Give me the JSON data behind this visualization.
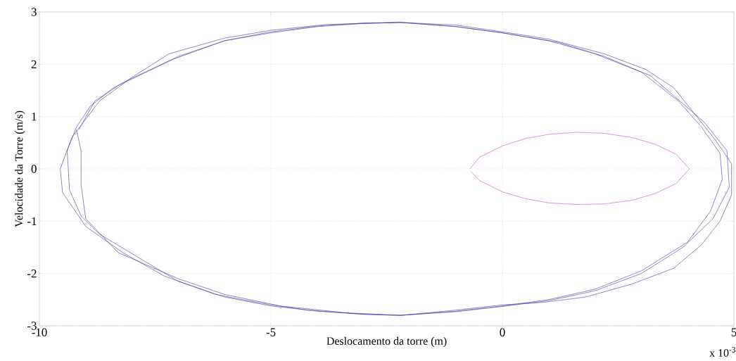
{
  "chart_data": {
    "type": "line",
    "xlabel": "Deslocamento da torre (m)",
    "ylabel": "Velocidade da Torre (m/s)",
    "annotations": [
      "x 10$^{-3}$"
    ],
    "xlim": [
      -10,
      5
    ],
    "ylim": [
      -3,
      3
    ],
    "xticks": [
      -10,
      -5,
      0,
      5
    ],
    "yticks": [
      -3,
      -2,
      -1,
      0,
      1,
      2,
      3
    ],
    "grid": true,
    "marker": "none",
    "line_style": "solid",
    "series": [
      {
        "color": "#3a3aa0",
        "x": [
          -9.15,
          -8.8,
          -8.2,
          -7.0,
          -6.0,
          -5.0,
          -4.0,
          -3.0,
          -2.2,
          -1.0,
          0,
          1.0,
          2.0,
          3.0,
          3.8,
          4.3,
          4.7,
          4.75,
          4.5,
          4.0,
          3.0,
          2.0,
          1.0,
          0,
          -1.0,
          -2.2,
          -3.0,
          -4.0,
          -5.0,
          -6.0,
          -7.0,
          -8.0,
          -8.7,
          -9.1,
          -9.35,
          -9.4,
          -9.2,
          -8.9,
          -8.4,
          -7.1,
          -6.0,
          -5.0,
          -4.0,
          -3.0,
          -2.2,
          -1.0,
          0,
          1.2,
          2.2,
          3.2,
          3.7,
          4.35,
          4.85,
          4.9,
          4.55,
          3.9,
          3.0,
          2.0,
          1.0,
          0,
          -1.0,
          -2.2,
          -3.0,
          -4.2,
          -5.0,
          -6.2,
          -7.3,
          -8.2,
          -9.0,
          -9.5,
          -9.55,
          -9.3,
          -8.7,
          -8.0,
          -7.2,
          -6.0,
          -5.0,
          -3.8,
          -2.2,
          -1.0,
          0,
          1.0,
          2.2,
          3.1,
          3.7,
          4.2,
          4.6,
          4.95,
          4.95,
          4.7,
          4.3,
          3.7,
          2.8,
          1.8,
          0.9,
          0,
          -1.0,
          -2.2,
          -3.4,
          -4.8,
          -6.0,
          -7.0,
          -8.3,
          -9.0,
          -9.1,
          -9.1,
          -9.2
        ],
        "values": [
          0.75,
          1.3,
          1.65,
          2.15,
          2.45,
          2.62,
          2.73,
          2.79,
          2.8,
          2.72,
          2.6,
          2.45,
          2.2,
          1.85,
          1.3,
          0.8,
          0.3,
          -0.2,
          -0.8,
          -1.4,
          -1.95,
          -2.3,
          -2.5,
          -2.62,
          -2.72,
          -2.8,
          -2.78,
          -2.72,
          -2.62,
          -2.45,
          -2.15,
          -1.62,
          -1.25,
          -0.9,
          -0.4,
          0.35,
          0.8,
          1.2,
          1.55,
          2.1,
          2.45,
          2.6,
          2.72,
          2.78,
          2.8,
          2.72,
          2.6,
          2.42,
          2.15,
          1.78,
          1.4,
          0.9,
          0.35,
          -0.35,
          -0.95,
          -1.5,
          -2.0,
          -2.33,
          -2.52,
          -2.63,
          -2.73,
          -2.8,
          -2.78,
          -2.7,
          -2.6,
          -2.4,
          -2.05,
          -1.6,
          -1.1,
          -0.45,
          0.0,
          0.6,
          1.3,
          1.75,
          2.2,
          2.5,
          2.65,
          2.76,
          2.8,
          2.75,
          2.62,
          2.48,
          2.2,
          1.9,
          1.55,
          1.0,
          0.55,
          0.1,
          -0.5,
          -1.0,
          -1.45,
          -1.9,
          -2.2,
          -2.45,
          -2.55,
          -2.6,
          -2.7,
          -2.8,
          -2.75,
          -2.62,
          -2.4,
          -2.1,
          -1.6,
          -0.95,
          -0.3,
          0.35,
          0.75
        ]
      },
      {
        "color": "#cc44cc",
        "x": [
          -0.7,
          -0.5,
          0,
          0.5,
          1.0,
          1.6,
          2.2,
          2.8,
          3.3,
          3.75,
          4.04,
          3.75,
          3.3,
          2.8,
          2.2,
          1.6,
          1.0,
          0.5,
          0,
          -0.5,
          -0.68
        ],
        "values": [
          0,
          0.22,
          0.44,
          0.58,
          0.66,
          0.7,
          0.68,
          0.6,
          0.47,
          0.28,
          0,
          -0.28,
          -0.47,
          -0.6,
          -0.67,
          -0.68,
          -0.65,
          -0.57,
          -0.44,
          -0.22,
          -0.05
        ]
      }
    ]
  }
}
